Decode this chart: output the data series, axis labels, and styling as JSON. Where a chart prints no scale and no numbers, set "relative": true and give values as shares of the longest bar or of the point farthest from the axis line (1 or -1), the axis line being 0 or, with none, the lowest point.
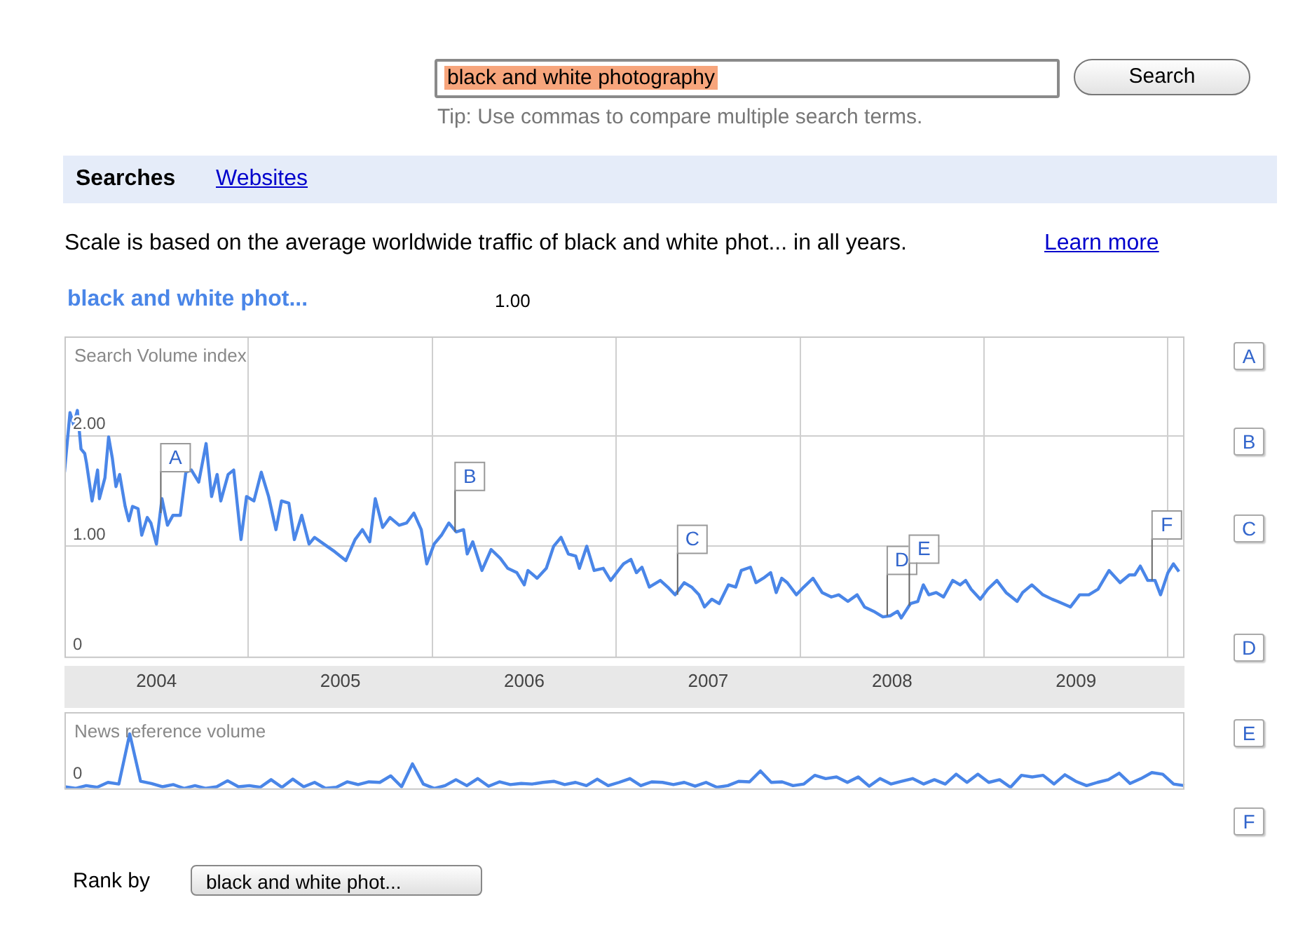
{
  "chart_data": [
    {
      "type": "line",
      "subtitle": "Scale is based on the average worldwide traffic of black and white phot... in all years.",
      "ylabel": "Search Volume index",
      "legend": "top left",
      "grid": true,
      "xlim": [
        2004,
        2010.09
      ],
      "ylim": [
        0,
        2.9
      ],
      "xticks": [
        {
          "value": 2004.5,
          "label": "2004"
        },
        {
          "value": 2005,
          "label": null
        },
        {
          "value": 2005.5,
          "label": "2005"
        },
        {
          "value": 2006,
          "label": null
        },
        {
          "value": 2006.5,
          "label": "2006"
        },
        {
          "value": 2007,
          "label": null
        },
        {
          "value": 2007.5,
          "label": "2007"
        },
        {
          "value": 2008,
          "label": null
        },
        {
          "value": 2008.5,
          "label": "2008"
        },
        {
          "value": 2009,
          "label": null
        },
        {
          "value": 2009.5,
          "label": "2009"
        },
        {
          "value": 2010,
          "label": null
        }
      ],
      "yticks": [
        {
          "value": 0,
          "label": "0"
        },
        {
          "value": 1,
          "label": "1.00"
        },
        {
          "value": 2,
          "label": "2.00"
        }
      ],
      "series": [
        {
          "name": "black and white phot...",
          "color": "#4a86e8",
          "x": [
            2004.0,
            2004.03,
            2004.05,
            2004.07,
            2004.09,
            2004.11,
            2004.12,
            2004.15,
            2004.18,
            2004.19,
            2004.22,
            2004.24,
            2004.26,
            2004.28,
            2004.3,
            2004.33,
            2004.35,
            2004.37,
            2004.4,
            2004.42,
            2004.45,
            2004.47,
            2004.5,
            2004.53,
            2004.56,
            2004.59,
            2004.63,
            2004.66,
            2004.69,
            2004.73,
            2004.77,
            2004.8,
            2004.83,
            2004.85,
            2004.89,
            2004.92,
            2004.96,
            2004.99,
            2005.03,
            2005.07,
            2005.11,
            2005.15,
            2005.18,
            2005.22,
            2005.25,
            2005.29,
            2005.33,
            2005.36,
            2005.41,
            2005.47,
            2005.53,
            2005.58,
            2005.62,
            2005.66,
            2005.69,
            2005.73,
            2005.77,
            2005.82,
            2005.86,
            2005.9,
            2005.94,
            2005.97,
            2006.01,
            2006.05,
            2006.09,
            2006.13,
            2006.17,
            2006.19,
            2006.22,
            2006.27,
            2006.32,
            2006.37,
            2006.41,
            2006.46,
            2006.5,
            2006.52,
            2006.57,
            2006.62,
            2006.66,
            2006.7,
            2006.74,
            2006.78,
            2006.8,
            2006.84,
            2006.88,
            2006.93,
            2006.97,
            2007.03,
            2007.04,
            2007.08,
            2007.11,
            2007.14,
            2007.18,
            2007.24,
            2007.28,
            2007.32,
            2007.37,
            2007.41,
            2007.45,
            2007.48,
            2007.52,
            2007.56,
            2007.61,
            2007.65,
            2007.68,
            2007.73,
            2007.76,
            2007.8,
            2007.84,
            2007.87,
            2007.9,
            2007.93,
            2007.98,
            2008.02,
            2008.07,
            2008.12,
            2008.17,
            2008.21,
            2008.26,
            2008.31,
            2008.35,
            2008.4,
            2008.45,
            2008.49,
            2008.53,
            2008.55,
            2008.6,
            2008.64,
            2008.67,
            2008.7,
            2008.74,
            2008.78,
            2008.83,
            2008.87,
            2008.9,
            2008.93,
            2008.98,
            2009.02,
            2009.07,
            2009.12,
            2009.18,
            2009.21,
            2009.26,
            2009.32,
            2009.37,
            2009.4,
            2009.47,
            2009.52,
            2009.57,
            2009.62,
            2009.68,
            2009.74,
            2009.79,
            2009.82,
            2009.85,
            2009.89,
            2009.93,
            2009.96,
            2010.0,
            2010.03,
            2010.06
          ],
          "values": [
            1.67,
            2.21,
            2.1,
            2.23,
            1.88,
            1.84,
            1.75,
            1.41,
            1.69,
            1.43,
            1.62,
            1.99,
            1.8,
            1.54,
            1.65,
            1.36,
            1.23,
            1.36,
            1.34,
            1.1,
            1.26,
            1.21,
            1.02,
            1.43,
            1.19,
            1.28,
            1.28,
            1.67,
            1.69,
            1.58,
            1.93,
            1.45,
            1.65,
            1.41,
            1.65,
            1.69,
            1.06,
            1.45,
            1.41,
            1.67,
            1.45,
            1.15,
            1.41,
            1.39,
            1.06,
            1.28,
            1.02,
            1.08,
            1.02,
            0.95,
            0.87,
            1.06,
            1.15,
            1.04,
            1.43,
            1.17,
            1.26,
            1.19,
            1.21,
            1.3,
            1.15,
            0.84,
            1.02,
            1.1,
            1.21,
            1.13,
            1.15,
            0.93,
            1.04,
            0.78,
            0.97,
            0.89,
            0.8,
            0.76,
            0.65,
            0.78,
            0.71,
            0.8,
            1.0,
            1.08,
            0.93,
            0.91,
            0.8,
            1.0,
            0.78,
            0.8,
            0.69,
            0.82,
            0.84,
            0.88,
            0.76,
            0.81,
            0.63,
            0.69,
            0.63,
            0.56,
            0.67,
            0.63,
            0.56,
            0.45,
            0.52,
            0.48,
            0.65,
            0.63,
            0.78,
            0.81,
            0.67,
            0.71,
            0.76,
            0.58,
            0.71,
            0.67,
            0.56,
            0.63,
            0.71,
            0.58,
            0.54,
            0.56,
            0.5,
            0.56,
            0.45,
            0.41,
            0.36,
            0.37,
            0.41,
            0.35,
            0.48,
            0.5,
            0.65,
            0.56,
            0.58,
            0.54,
            0.69,
            0.65,
            0.69,
            0.61,
            0.52,
            0.61,
            0.69,
            0.58,
            0.5,
            0.58,
            0.65,
            0.56,
            0.52,
            0.5,
            0.45,
            0.56,
            0.56,
            0.61,
            0.78,
            0.67,
            0.74,
            0.74,
            0.82,
            0.69,
            0.69,
            0.56,
            0.76,
            0.84,
            0.77
          ]
        }
      ],
      "annotations": [
        "black and white photography",
        "Search",
        "Tip: Use commas to compare multiple search terms.",
        "Searches",
        "Websites",
        "Learn more",
        "1.00",
        {
          "text": "A",
          "x": 2004.52,
          "y": 1.3
        },
        {
          "text": "B",
          "x": 2006.12,
          "y": 1.13
        },
        {
          "text": "C",
          "x": 2007.33,
          "y": 0.56
        },
        {
          "text": "D",
          "x": 2008.47,
          "y": 0.37
        },
        {
          "text": "E",
          "x": 2008.59,
          "y": 0.46
        },
        {
          "text": "F",
          "x": 2009.91,
          "y": 0.69
        },
        "A",
        "B",
        "C",
        "D",
        "E",
        "F"
      ]
    },
    {
      "type": "line",
      "ylabel": "News reference volume",
      "relative": true,
      "categories": [
        null,
        null,
        null,
        null,
        null,
        null,
        null,
        null,
        null,
        null,
        null,
        null,
        null,
        null,
        null,
        null,
        null,
        null,
        null,
        null,
        null,
        null,
        null,
        null,
        null,
        null,
        null,
        null,
        null,
        null,
        null,
        null,
        null,
        null,
        null,
        null,
        null,
        null,
        null,
        null,
        null,
        null,
        null,
        null,
        null,
        null,
        null,
        null,
        null,
        null,
        null,
        null,
        null,
        null,
        null,
        null,
        null,
        null,
        null,
        null,
        null,
        null,
        null,
        null,
        null,
        null,
        null,
        null,
        null,
        null,
        null,
        null,
        null,
        null,
        null,
        null,
        null,
        null,
        null,
        null,
        null,
        null,
        null,
        null,
        null,
        null,
        null,
        null,
        null,
        null,
        null,
        null,
        null,
        null,
        null,
        null,
        null,
        null,
        null,
        null,
        null,
        null,
        null,
        null
      ],
      "series": [
        {
          "color": "#4a86e8",
          "values": [
            0.03,
            0,
            0.05,
            0.02,
            0.11,
            0.08,
            1,
            0.13,
            0.09,
            0.03,
            0.07,
            0,
            0.05,
            0,
            0.03,
            0.14,
            0.03,
            0.05,
            0.02,
            0.16,
            0.02,
            0.17,
            0.03,
            0.11,
            0,
            0.02,
            0.12,
            0.07,
            0.12,
            0.11,
            0.23,
            0.03,
            0.45,
            0.08,
            0,
            0.05,
            0.16,
            0.05,
            0.18,
            0.04,
            0.12,
            0.07,
            0.09,
            0.08,
            0.11,
            0.13,
            0.07,
            0.11,
            0.05,
            0.17,
            0.05,
            0.11,
            0.18,
            0.05,
            0.12,
            0.11,
            0.07,
            0.11,
            0.04,
            0.11,
            0.02,
            0.05,
            0.13,
            0.12,
            0.32,
            0.11,
            0.12,
            0.05,
            0.08,
            0.24,
            0.18,
            0.21,
            0.11,
            0.21,
            0.04,
            0.18,
            0.08,
            0.13,
            0.18,
            0.08,
            0.16,
            0.08,
            0.26,
            0.11,
            0.26,
            0.11,
            0.16,
            0.02,
            0.24,
            0.21,
            0.24,
            0.08,
            0.25,
            0.13,
            0.05,
            0.11,
            0.16,
            0.28,
            0.09,
            0.18,
            0.29,
            0.26,
            0.08,
            0.05
          ]
        }
      ],
      "annotations": [
        "0",
        "Rank by",
        "black and white phot..."
      ]
    }
  ]
}
